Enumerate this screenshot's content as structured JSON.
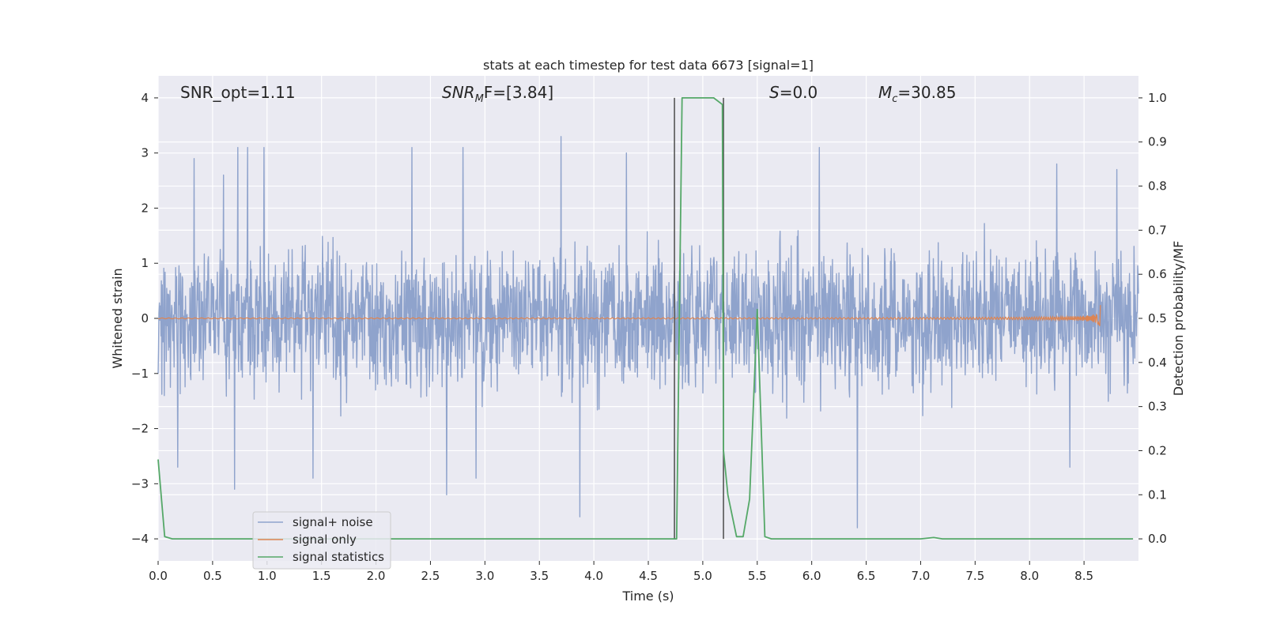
{
  "chart_data": {
    "type": "line",
    "title": "stats at each timestep for test data 6673 [signal=1]",
    "xlabel": "Time (s)",
    "ylabel": "Whitened strain",
    "y2label": "Detection probability/MF",
    "xlim": [
      0.0,
      9.0
    ],
    "ylim": [
      -4.4,
      4.4
    ],
    "y2lim": [
      -0.05,
      1.05
    ],
    "xticks": [
      0.0,
      0.5,
      1.0,
      1.5,
      2.0,
      2.5,
      3.0,
      3.5,
      4.0,
      4.5,
      5.0,
      5.5,
      6.0,
      6.5,
      7.0,
      7.5,
      8.0,
      8.5
    ],
    "yticks": [
      -4,
      -3,
      -2,
      -1,
      0,
      1,
      2,
      3,
      4
    ],
    "y2ticks": [
      0.0,
      0.1,
      0.2,
      0.3,
      0.4,
      0.5,
      0.6,
      0.7,
      0.8,
      0.9,
      1.0
    ],
    "grid": true,
    "legend_position": "lower-left",
    "annotations": {
      "snr_opt": "SNR_opt=1.11",
      "snr_mf_base": "SNR",
      "snr_mf_sub": "M",
      "snr_mf_rest": "F=[3.84]",
      "s_sym": "S",
      "s_rest": "=0.0",
      "mc_sym": "M",
      "mc_sub": "c",
      "mc_rest": "=30.85"
    },
    "series": [
      {
        "name": "signal+ noise",
        "color": "#8fa3cc",
        "axis": "left",
        "envelope_peaks": [
          [
            0.33,
            2.9
          ],
          [
            0.6,
            2.6
          ],
          [
            0.73,
            3.1
          ],
          [
            0.82,
            3.1
          ],
          [
            0.97,
            3.1
          ],
          [
            2.33,
            3.1
          ],
          [
            2.8,
            3.1
          ],
          [
            3.7,
            3.3
          ],
          [
            4.3,
            3.0
          ],
          [
            6.07,
            3.1
          ],
          [
            8.25,
            2.8
          ],
          [
            8.8,
            2.7
          ]
        ],
        "envelope_troughs": [
          [
            0.18,
            -2.7
          ],
          [
            0.7,
            -3.1
          ],
          [
            1.42,
            -2.9
          ],
          [
            2.65,
            -3.2
          ],
          [
            2.92,
            -2.9
          ],
          [
            3.87,
            -3.6
          ],
          [
            6.42,
            -3.8
          ],
          [
            8.37,
            -2.7
          ]
        ]
      },
      {
        "name": "signal only",
        "color": "#dd8452",
        "axis": "left",
        "chirp_end_time": 8.65,
        "chirp_peak_amplitude": 0.25
      },
      {
        "name": "signal statistics",
        "color": "#55a868",
        "axis": "right",
        "x": [
          0.0,
          0.06,
          0.13,
          4.74,
          4.76,
          4.81,
          4.86,
          5.1,
          5.18,
          5.19,
          5.23,
          5.31,
          5.37,
          5.43,
          5.5,
          5.57,
          5.63,
          7.0,
          7.12,
          7.2,
          8.95
        ],
        "y": [
          0.18,
          0.005,
          0.0,
          0.0,
          0.0,
          1.0,
          1.0,
          1.0,
          0.985,
          0.2,
          0.1,
          0.005,
          0.005,
          0.09,
          0.52,
          0.005,
          0.0,
          0.0,
          0.003,
          0.0,
          0.0
        ]
      }
    ],
    "vertical_markers": [
      {
        "x": 4.74,
        "y_from": 0.0,
        "y_to": 1.0
      },
      {
        "x": 5.19,
        "y_from": 0.0,
        "y_to": 1.0
      }
    ],
    "colors": {
      "plot_background": "#eaeaf2",
      "grid": "#ffffff",
      "marker_line": "#555555",
      "legend_border": "#cccccc"
    }
  }
}
